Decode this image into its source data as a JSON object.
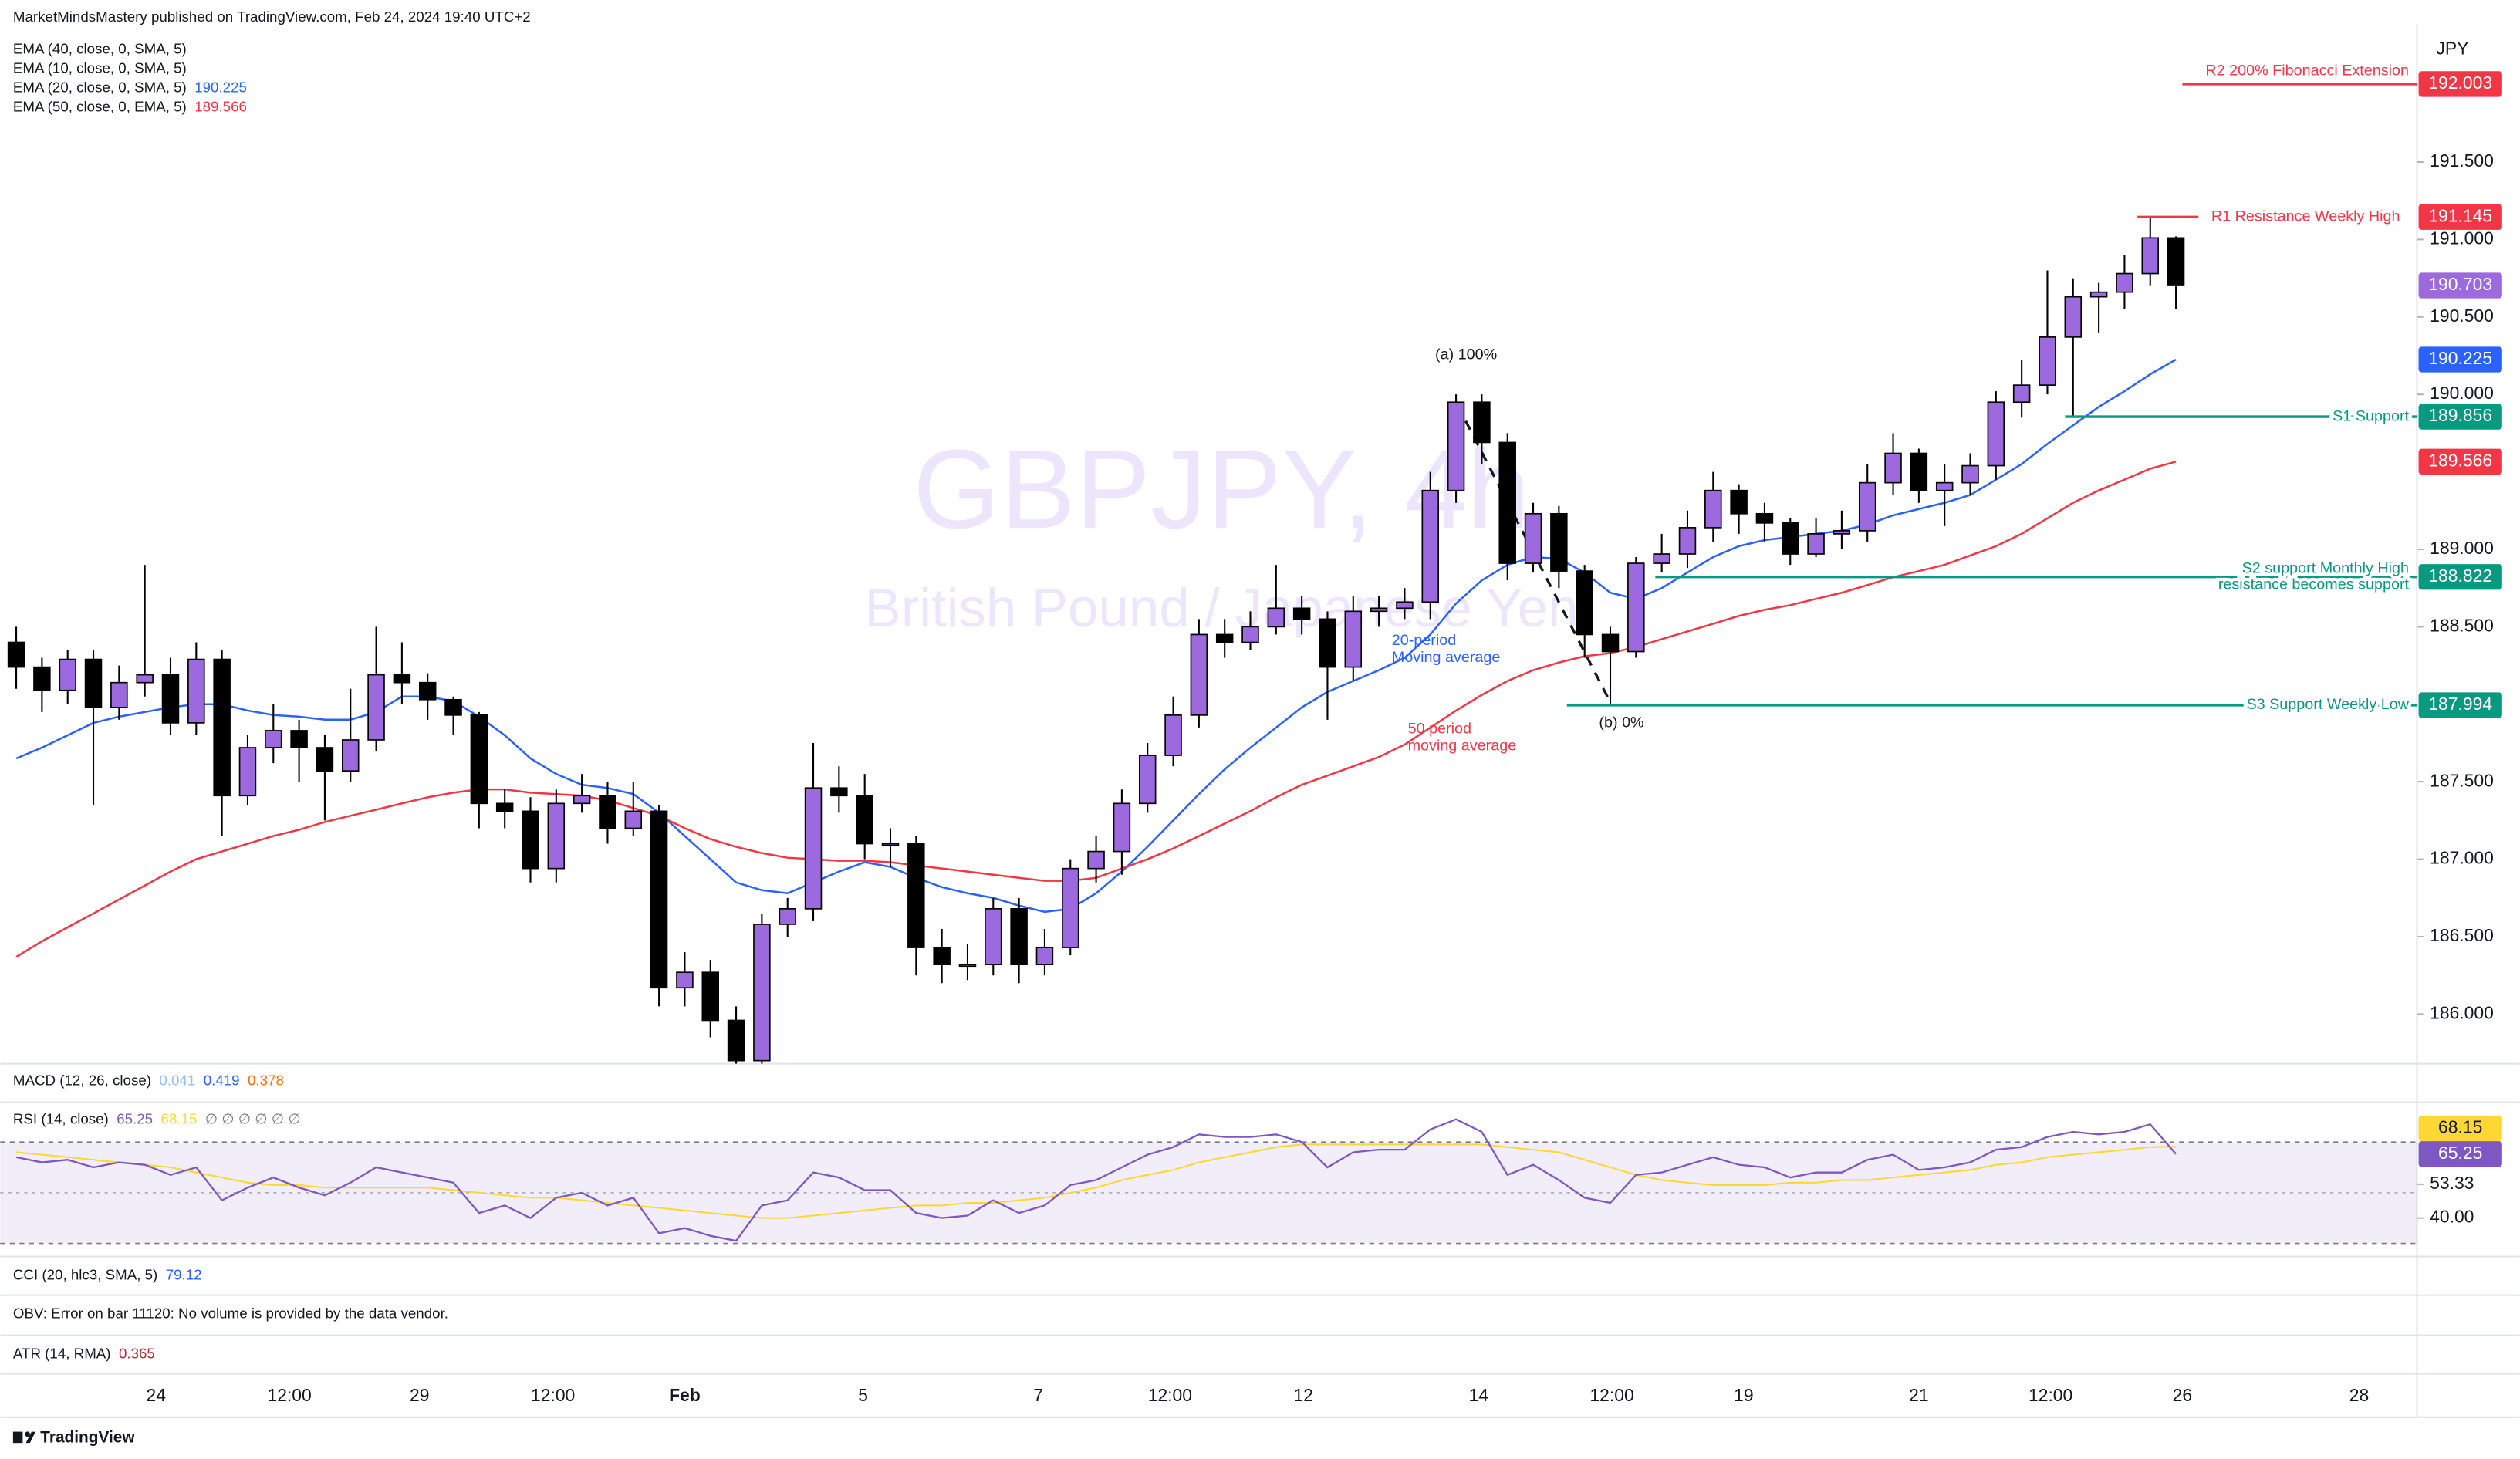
{
  "header": {
    "publisher": "MarketMindsMastery published on TradingView.com, Feb 24, 2024 19:40 UTC+2",
    "footer": "TradingView"
  },
  "panes": [
    {
      "title": "MACD (12, 26, close)",
      "values": [
        0.041,
        0.419,
        0.378
      ],
      "colors": [
        "#90bff9",
        "#2962ff",
        "#ff6d00"
      ]
    },
    {
      "title": "CCI (20, hlc3, SMA, 5)",
      "values": [
        79.12
      ],
      "colors": [
        "#2962ff"
      ]
    },
    {
      "title": "OBV: Error on bar 11120: No volume is provided by the data vendor."
    },
    {
      "title": "ATR (14, RMA)",
      "values": [
        0.365
      ],
      "colors": [
        "#b22833"
      ]
    }
  ],
  "chart_data": [
    {
      "type": "candlestick",
      "title": "GBPJPY, 4h",
      "subtitle": "British Pound / Japanese Yen",
      "currency": "JPY",
      "x_labels": [
        "24",
        "12:00",
        "29",
        "12:00",
        "Feb",
        "5",
        "7",
        "12:00",
        "12",
        "14",
        "12:00",
        "19",
        "21",
        "12:00",
        "26",
        "28"
      ],
      "up_color": "#9c6ade",
      "down_color": "#000000",
      "last_color": "#9c6ade",
      "ylim": [
        185.68,
        192.39
      ],
      "yticks": [
        {
          "value": 191.5,
          "label": "191.500"
        },
        {
          "value": 191,
          "label": "191.000"
        },
        {
          "value": 190.5,
          "label": "190.500"
        },
        {
          "value": 190,
          "label": "190.000"
        },
        {
          "value": 189,
          "label": "189.000"
        },
        {
          "value": 188.5,
          "label": "188.500"
        },
        {
          "value": 187.5,
          "label": "187.500"
        },
        {
          "value": 187,
          "label": "187.000"
        },
        {
          "value": 186.5,
          "label": "186.500"
        },
        {
          "value": 186,
          "label": "186.000"
        }
      ],
      "open": [
        188.4,
        188.24,
        188.09,
        188.29,
        187.98,
        188.14,
        188.19,
        187.88,
        188.29,
        187.41,
        187.72,
        187.83,
        187.72,
        187.57,
        187.77,
        188.19,
        188.14,
        188.03,
        187.93,
        187.36,
        187.31,
        186.94,
        187.36,
        187.41,
        187.2,
        187.31,
        186.17,
        186.27,
        185.96,
        185.7,
        186.58,
        186.68,
        187.46,
        187.41,
        187.1,
        187.1,
        186.43,
        186.32,
        186.32,
        186.68,
        186.32,
        186.43,
        186.94,
        187.05,
        187.36,
        187.67,
        187.93,
        188.45,
        188.4,
        188.5,
        188.62,
        188.55,
        188.24,
        188.6,
        188.62,
        188.66,
        189.38,
        189.95,
        189.69,
        188.91,
        189.23,
        188.86,
        188.45,
        188.34,
        188.91,
        188.97,
        189.14,
        189.38,
        189.23,
        189.17,
        188.97,
        189.1,
        189.12,
        189.43,
        189.62,
        189.38,
        189.43,
        189.54,
        189.95,
        190.06,
        190.37,
        190.63,
        190.66,
        190.78,
        191.01
      ],
      "high": [
        188.5,
        188.3,
        188.35,
        188.35,
        188.25,
        188.9,
        188.3,
        188.4,
        188.35,
        187.8,
        188.0,
        187.9,
        187.8,
        188.1,
        188.5,
        188.4,
        188.2,
        188.05,
        187.95,
        187.45,
        187.4,
        187.45,
        187.55,
        187.5,
        187.5,
        187.35,
        186.4,
        186.35,
        186.05,
        186.65,
        186.75,
        187.75,
        187.6,
        187.55,
        187.2,
        187.15,
        186.55,
        186.45,
        186.75,
        186.75,
        186.55,
        187.0,
        187.15,
        187.45,
        187.75,
        188.05,
        188.55,
        188.55,
        188.6,
        188.9,
        188.7,
        188.6,
        188.7,
        188.7,
        188.75,
        189.5,
        190.0,
        190.0,
        189.75,
        189.3,
        189.28,
        188.9,
        188.5,
        188.95,
        189.1,
        189.25,
        189.5,
        189.42,
        189.3,
        189.2,
        189.2,
        189.25,
        189.55,
        189.75,
        189.65,
        189.55,
        189.62,
        190.02,
        190.22,
        190.8,
        190.75,
        190.72,
        190.9,
        191.145,
        191.02
      ],
      "low": [
        188.1,
        187.95,
        188.0,
        187.35,
        187.9,
        188.05,
        187.8,
        187.8,
        187.15,
        187.35,
        187.62,
        187.5,
        187.25,
        187.5,
        187.7,
        188.0,
        187.9,
        187.8,
        187.2,
        187.2,
        186.85,
        186.85,
        187.3,
        187.1,
        187.15,
        186.05,
        186.05,
        185.85,
        185.65,
        185.68,
        186.5,
        186.6,
        187.3,
        187.0,
        186.95,
        186.25,
        186.2,
        186.22,
        186.25,
        186.2,
        186.25,
        186.38,
        186.85,
        186.9,
        187.3,
        187.6,
        187.85,
        188.3,
        188.35,
        188.45,
        188.45,
        187.9,
        188.15,
        188.5,
        188.55,
        188.55,
        189.3,
        189.55,
        188.8,
        188.85,
        188.75,
        188.3,
        188.0,
        188.3,
        188.85,
        188.88,
        189.05,
        189.1,
        189.05,
        188.9,
        188.95,
        189.0,
        189.05,
        189.35,
        189.3,
        189.15,
        189.35,
        189.45,
        189.85,
        190.0,
        189.86,
        190.4,
        190.55,
        190.7,
        190.55
      ],
      "close": [
        188.24,
        188.09,
        188.29,
        187.98,
        188.14,
        188.19,
        187.88,
        188.29,
        187.41,
        187.72,
        187.83,
        187.72,
        187.57,
        187.77,
        188.19,
        188.14,
        188.03,
        187.93,
        187.36,
        187.31,
        186.94,
        187.36,
        187.41,
        187.2,
        187.31,
        186.17,
        186.27,
        185.96,
        185.7,
        186.58,
        186.68,
        187.46,
        187.41,
        187.1,
        187.1,
        186.43,
        186.32,
        186.32,
        186.68,
        186.32,
        186.43,
        186.94,
        187.05,
        187.36,
        187.67,
        187.93,
        188.45,
        188.4,
        188.5,
        188.62,
        188.55,
        188.24,
        188.6,
        188.62,
        188.66,
        189.38,
        189.95,
        189.69,
        188.91,
        189.23,
        188.86,
        188.45,
        188.34,
        188.91,
        188.97,
        189.14,
        189.38,
        189.23,
        189.17,
        188.97,
        189.1,
        189.12,
        189.43,
        189.62,
        189.38,
        189.43,
        189.54,
        189.95,
        190.06,
        190.37,
        190.63,
        190.66,
        190.78,
        191.01,
        190.703
      ],
      "indicators": [
        {
          "name": "EMA (40, close, 0, SMA, 5)"
        },
        {
          "name": "EMA (10, close, 0, SMA, 5)"
        },
        {
          "name": "EMA (20, close, 0, SMA, 5)",
          "color": "#2962ff",
          "values": [
            187.65,
            187.72,
            187.8,
            187.88,
            187.92,
            187.95,
            187.98,
            188.0,
            188.0,
            187.96,
            187.93,
            187.92,
            187.9,
            187.9,
            187.95,
            188.05,
            188.05,
            188.02,
            187.92,
            187.8,
            187.65,
            187.55,
            187.48,
            187.46,
            187.42,
            187.3,
            187.15,
            187.0,
            186.85,
            186.8,
            186.78,
            186.85,
            186.92,
            186.98,
            186.95,
            186.88,
            186.82,
            186.78,
            186.75,
            186.7,
            186.66,
            186.68,
            186.78,
            186.92,
            187.08,
            187.25,
            187.42,
            187.58,
            187.72,
            187.85,
            187.98,
            188.08,
            188.15,
            188.22,
            188.3,
            188.45,
            188.65,
            188.8,
            188.9,
            188.95,
            188.94,
            188.85,
            188.72,
            188.68,
            188.75,
            188.85,
            188.95,
            189.02,
            189.06,
            189.08,
            189.1,
            189.12,
            189.16,
            189.22,
            189.26,
            189.3,
            189.35,
            189.45,
            189.55,
            189.68,
            189.8,
            189.92,
            190.02,
            190.13,
            190.225
          ]
        },
        {
          "name": "EMA (50, close, 0, EMA, 5)",
          "color": "#f23645",
          "values": [
            186.37,
            186.47,
            186.56,
            186.65,
            186.74,
            186.83,
            186.92,
            187.0,
            187.05,
            187.1,
            187.15,
            187.19,
            187.24,
            187.28,
            187.32,
            187.36,
            187.4,
            187.43,
            187.45,
            187.45,
            187.43,
            187.42,
            187.41,
            187.38,
            187.33,
            187.28,
            187.2,
            187.13,
            187.08,
            187.04,
            187.01,
            187.0,
            186.99,
            186.99,
            186.98,
            186.96,
            186.94,
            186.92,
            186.9,
            186.88,
            186.86,
            186.86,
            186.88,
            186.94,
            187.0,
            187.07,
            187.15,
            187.23,
            187.31,
            187.4,
            187.48,
            187.54,
            187.6,
            187.66,
            187.74,
            187.85,
            187.96,
            188.06,
            188.15,
            188.22,
            188.27,
            188.31,
            188.33,
            188.37,
            188.42,
            188.47,
            188.52,
            188.57,
            188.61,
            188.64,
            188.68,
            188.72,
            188.77,
            188.82,
            188.86,
            188.9,
            188.96,
            189.02,
            189.1,
            189.2,
            189.3,
            189.38,
            189.45,
            189.52,
            189.566
          ]
        }
      ],
      "levels": [
        {
          "label": [
            "R2 200% Fibonacci Extension"
          ],
          "value": 192.003,
          "color": "#f23645"
        },
        {
          "label": [
            "R1 Resistance Weekly High"
          ],
          "value": 191.145,
          "color": "#f23645"
        },
        {
          "label": [
            "S1 Support"
          ],
          "value": 189.856,
          "color": "#089981"
        },
        {
          "label": [
            "S2 support Monthly High",
            "resistance becomes support"
          ],
          "value": 188.822,
          "color": "#089981"
        },
        {
          "label": [
            "S3 Support Weekly Low"
          ],
          "value": 187.994,
          "color": "#089981"
        }
      ],
      "annotations": [
        {
          "text": [
            "(a) 100%"
          ],
          "color": "#131722"
        },
        {
          "text": [
            "(b) 0%"
          ],
          "color": "#131722"
        },
        {
          "text": [
            "20-period",
            "Moving average"
          ],
          "color": "#2962ff"
        },
        {
          "text": [
            "50 period",
            "moving average"
          ],
          "color": "#f23645"
        }
      ]
    },
    {
      "type": "line",
      "title": "RSI (14, close)",
      "legend_suffix": "∅ ∅ ∅ ∅ ∅ ∅",
      "ylim": [
        24.8,
        85.7
      ],
      "yticks": [
        53.33,
        {
          "value": 40,
          "label": "40.00"
        }
      ],
      "band": [
        30,
        70
      ],
      "band_color": "#7e57c2",
      "series": [
        {
          "color": "#7e57c2",
          "values": [
            64,
            62,
            63,
            60,
            62,
            61,
            57,
            60,
            47,
            52,
            56,
            52,
            49,
            54,
            60,
            58,
            56,
            54,
            42,
            45,
            40,
            48,
            50,
            45,
            48,
            34,
            36,
            33,
            31,
            45,
            47,
            58,
            56,
            51,
            51,
            42,
            40,
            41,
            47,
            42,
            45,
            53,
            55,
            60,
            65,
            68,
            73,
            72,
            72,
            73,
            70,
            60,
            66,
            67,
            67,
            75,
            79,
            74,
            57,
            61,
            55,
            48,
            46,
            57,
            58,
            61,
            64,
            61,
            60,
            56,
            58,
            58,
            63,
            65,
            59,
            60,
            62,
            67,
            68,
            72,
            74,
            73,
            74,
            77,
            65.25
          ]
        },
        {
          "color": "#fdd835",
          "values": [
            66,
            65,
            64,
            63,
            62,
            61,
            60,
            58,
            56,
            54,
            53,
            53,
            52,
            52,
            52,
            52,
            52,
            51,
            50,
            49,
            48,
            48,
            47,
            46,
            45,
            44,
            43,
            42,
            41,
            40,
            40,
            41,
            42,
            43,
            44,
            45,
            45,
            46,
            46,
            47,
            48,
            50,
            52,
            55,
            57,
            59,
            62,
            64,
            66,
            68,
            69,
            69,
            69,
            69,
            69,
            69,
            69,
            69,
            68,
            67,
            66,
            63,
            60,
            57,
            55,
            54,
            53,
            53,
            53,
            54,
            54,
            55,
            55,
            56,
            57,
            58,
            59,
            61,
            62,
            64,
            65,
            66,
            67,
            68,
            68.15
          ]
        }
      ]
    }
  ]
}
